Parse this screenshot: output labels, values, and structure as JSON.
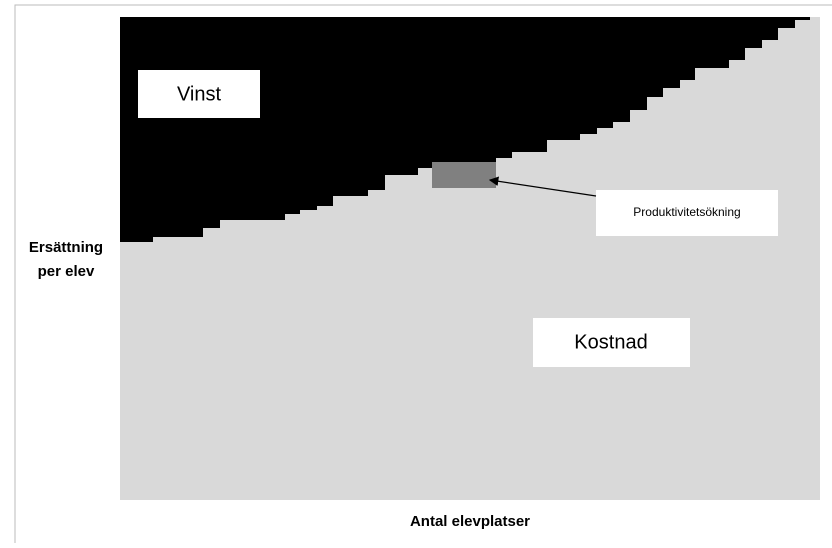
{
  "labels": {
    "profit": "Vinst",
    "cost": "Kostnad",
    "annotation": "Produktivitetsökning",
    "y_axis": [
      "Ersättning",
      "per elev"
    ],
    "x_axis": "Antal elevplatser"
  }
}
